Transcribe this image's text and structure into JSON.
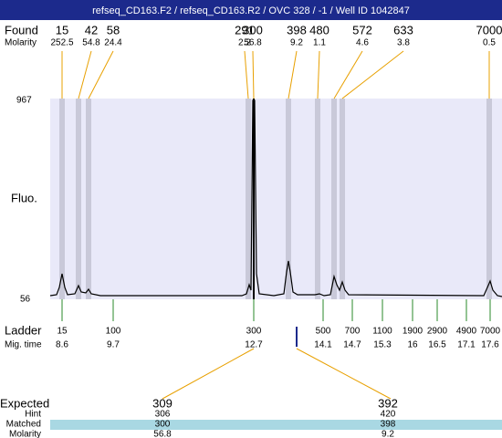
{
  "header": {
    "title": "refseq_CD163.F2 / refseq_CD163.R2 / OVC 328 / -1 / Well ID 1042847"
  },
  "found": {
    "label": "Found",
    "molarity_label": "Molarity",
    "peaks": [
      {
        "size": "15",
        "molarity": "252.5"
      },
      {
        "size": "42",
        "molarity": "54.8"
      },
      {
        "size": "58",
        "molarity": "24.4"
      },
      {
        "size": "291",
        "molarity": "2.2"
      },
      {
        "size": "300",
        "molarity": "56.8"
      },
      {
        "size": "398",
        "molarity": "9.2"
      },
      {
        "size": "480",
        "molarity": "1.1"
      },
      {
        "size": "572",
        "molarity": "4.6"
      },
      {
        "size": "633",
        "molarity": "3.8"
      },
      {
        "size": "7000",
        "molarity": "0.5"
      }
    ]
  },
  "plot": {
    "y_axis_label": "Fluo.",
    "y_max_label": "967",
    "y_min_label": "56"
  },
  "ladder": {
    "label": "Ladder",
    "time_label": "Mig. time",
    "marks": [
      {
        "size": "15",
        "time": "8.6"
      },
      {
        "size": "100",
        "time": "9.7"
      },
      {
        "size": "300",
        "time": "12.7"
      },
      {
        "size": "500",
        "time": "14.1"
      },
      {
        "size": "700",
        "time": "14.7"
      },
      {
        "size": "1100",
        "time": "15.3"
      },
      {
        "size": "1900",
        "time": "16"
      },
      {
        "size": "2900",
        "time": "16.5"
      },
      {
        "size": "4900",
        "time": "17.1"
      },
      {
        "size": "7000",
        "time": "17.6"
      }
    ]
  },
  "expected": {
    "label": "Expected",
    "hint_label": "Hint",
    "matched_label": "Matched",
    "molarity_label": "Molarity",
    "targets": [
      {
        "expected": "309",
        "hint": "306",
        "matched": "300",
        "molarity": "56.8"
      },
      {
        "expected": "392",
        "hint": "420",
        "matched": "398",
        "molarity": "9.2"
      }
    ]
  }
}
